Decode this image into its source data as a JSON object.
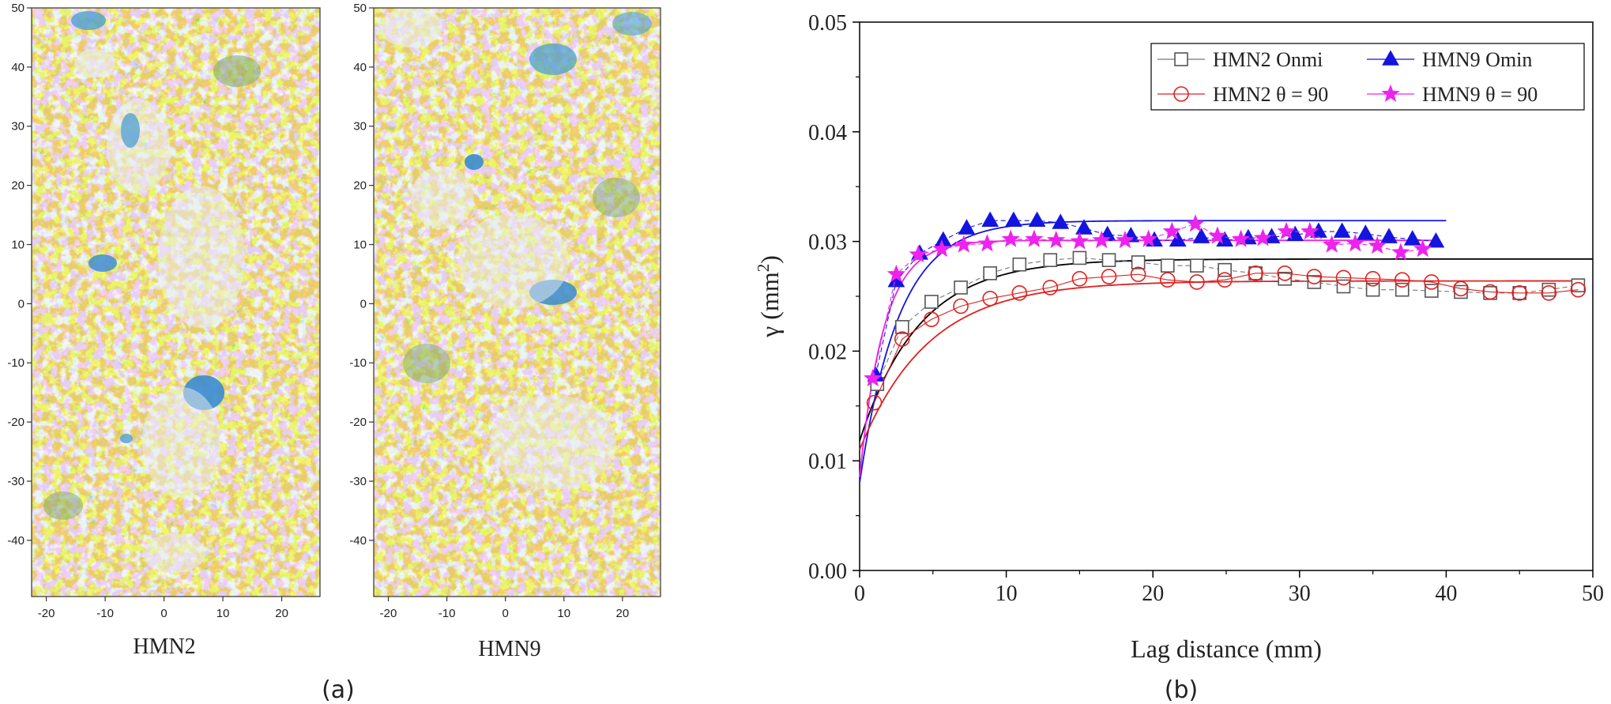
{
  "panels": {
    "a_label": "(a)",
    "b_label": "(b)"
  },
  "maps": [
    {
      "name": "HMN2",
      "xticks": [
        "-20",
        "-10",
        "0",
        "10",
        "20"
      ],
      "yticks": [
        "50",
        "40",
        "30",
        "20",
        "10",
        "0",
        "-10",
        "-20",
        "-30",
        "-40"
      ],
      "xlim": [
        -22.5,
        26.5
      ],
      "ylim": [
        -49.5,
        50
      ]
    },
    {
      "name": "HMN9",
      "xticks": [
        "-20",
        "-10",
        "0",
        "10",
        "20"
      ],
      "yticks": [
        "50",
        "40",
        "30",
        "20",
        "10",
        "0",
        "-10",
        "-20",
        "-30",
        "-40"
      ],
      "xlim": [
        -22.5,
        26.5
      ],
      "ylim": [
        -49.5,
        50
      ]
    }
  ],
  "colors": {
    "map_gold": "#c9a227",
    "map_sand": "#d9cfb0",
    "map_green": "#7fa876",
    "map_blue": "#4d9fd6",
    "map_light": "#e9edf1",
    "hmn2_omni": "#555555",
    "hmn2_fit": "#000000",
    "hmn9_omni": "#1414e0",
    "hmn2_90": "#e02020",
    "hmn9_90": "#ee22ee"
  },
  "chart_data": {
    "type": "scatter",
    "xlabel": "Lag distance (mm)",
    "ylabel": "γ (mm",
    "ylabel_sup": "2",
    "ylabel_end": ")",
    "xlim": [
      0,
      50
    ],
    "ylim": [
      0,
      0.05
    ],
    "xticks": [
      0,
      10,
      20,
      30,
      40,
      50
    ],
    "yticks": [
      0.0,
      0.01,
      0.02,
      0.03,
      0.04,
      0.05
    ],
    "legend": [
      {
        "label": "HMN2 Onmi",
        "marker": "square",
        "series": 0
      },
      {
        "label": "HMN9 Omin",
        "marker": "triangle",
        "series": 1
      },
      {
        "label": "HMN2 θ = 90",
        "marker": "circle",
        "series": 2
      },
      {
        "label": "HMN9 θ = 90",
        "marker": "star",
        "series": 3
      }
    ],
    "series": [
      {
        "name": "HMN2 Onmi",
        "marker": "square",
        "x": [
          1.2,
          2.9,
          4.9,
          6.9,
          8.9,
          10.9,
          13.0,
          15.0,
          17.0,
          19.0,
          21.0,
          23.0,
          24.9,
          27.0,
          29.0,
          31.0,
          33.0,
          35.0,
          37.0,
          39.0,
          41.0,
          43.0,
          45.0,
          47.0,
          49.0
        ],
        "y": [
          0.017,
          0.0222,
          0.0245,
          0.0258,
          0.0271,
          0.0279,
          0.0283,
          0.0285,
          0.0283,
          0.0281,
          0.0278,
          0.0278,
          0.0274,
          0.0271,
          0.0266,
          0.0263,
          0.0259,
          0.0256,
          0.0256,
          0.0255,
          0.0254,
          0.0253,
          0.0253,
          0.0256,
          0.026
        ]
      },
      {
        "name": "HMN9 Omin",
        "marker": "triangle",
        "x": [
          1.1,
          2.5,
          4.1,
          5.7,
          7.3,
          8.9,
          10.5,
          12.1,
          13.7,
          15.3,
          16.9,
          18.5,
          20.1,
          21.7,
          23.3,
          24.9,
          26.5,
          28.1,
          29.7,
          31.3,
          32.9,
          34.5,
          36.1,
          37.7,
          39.3
        ],
        "y": [
          0.0178,
          0.0264,
          0.0289,
          0.0301,
          0.0312,
          0.0319,
          0.0319,
          0.0319,
          0.0317,
          0.0312,
          0.0306,
          0.0305,
          0.0301,
          0.0301,
          0.0304,
          0.0301,
          0.0303,
          0.0304,
          0.0306,
          0.0309,
          0.0309,
          0.0307,
          0.0304,
          0.0302,
          0.03
        ]
      },
      {
        "name": "HMN2 θ = 90",
        "marker": "circle",
        "x": [
          1.0,
          2.9,
          4.9,
          6.9,
          8.9,
          10.9,
          13.0,
          15.0,
          17.0,
          19.0,
          21.0,
          23.0,
          24.9,
          27.0,
          29.0,
          31.0,
          33.0,
          35.0,
          37.0,
          39.0,
          41.0,
          43.0,
          45.0,
          47.0,
          49.0
        ],
        "y": [
          0.0153,
          0.0211,
          0.0229,
          0.0241,
          0.0248,
          0.0253,
          0.0258,
          0.0266,
          0.0268,
          0.027,
          0.0265,
          0.0263,
          0.0265,
          0.0271,
          0.0271,
          0.0268,
          0.0267,
          0.0266,
          0.0265,
          0.0263,
          0.0257,
          0.0254,
          0.0253,
          0.0253,
          0.0256
        ]
      },
      {
        "name": "HMN9 θ = 90",
        "marker": "star",
        "x": [
          0.9,
          2.5,
          4.0,
          5.6,
          7.1,
          8.7,
          10.3,
          11.9,
          13.4,
          15.0,
          16.5,
          18.1,
          19.7,
          21.3,
          22.9,
          24.4,
          26.0,
          27.5,
          29.1,
          30.7,
          32.2,
          33.8,
          35.3,
          36.9,
          38.4
        ],
        "y": [
          0.0175,
          0.027,
          0.0288,
          0.0293,
          0.0297,
          0.0298,
          0.0302,
          0.0302,
          0.0301,
          0.03,
          0.0301,
          0.0301,
          0.0302,
          0.0309,
          0.0316,
          0.0305,
          0.0302,
          0.0303,
          0.0309,
          0.0309,
          0.0297,
          0.0298,
          0.0296,
          0.029,
          0.0293
        ]
      }
    ],
    "fits": [
      {
        "name": "HMN2 Onmi fit",
        "nugget": 0.0118,
        "sill": 0.0284,
        "range": 12.0,
        "xmax": 50,
        "color_key": "hmn2_fit"
      },
      {
        "name": "HMN9 Omin fit",
        "nugget": 0.008,
        "sill": 0.0319,
        "range": 8.0,
        "xmax": 40,
        "color_key": "hmn9_omni"
      },
      {
        "name": "HMN2 θ = 90 fit",
        "nugget": 0.011,
        "sill": 0.0264,
        "range": 14.0,
        "xmax": 49,
        "color_key": "hmn2_90"
      },
      {
        "name": "HMN9 θ = 90 fit",
        "nugget": 0.0085,
        "sill": 0.0301,
        "range": 5.0,
        "xmax": 39,
        "color_key": "hmn9_90"
      }
    ]
  }
}
